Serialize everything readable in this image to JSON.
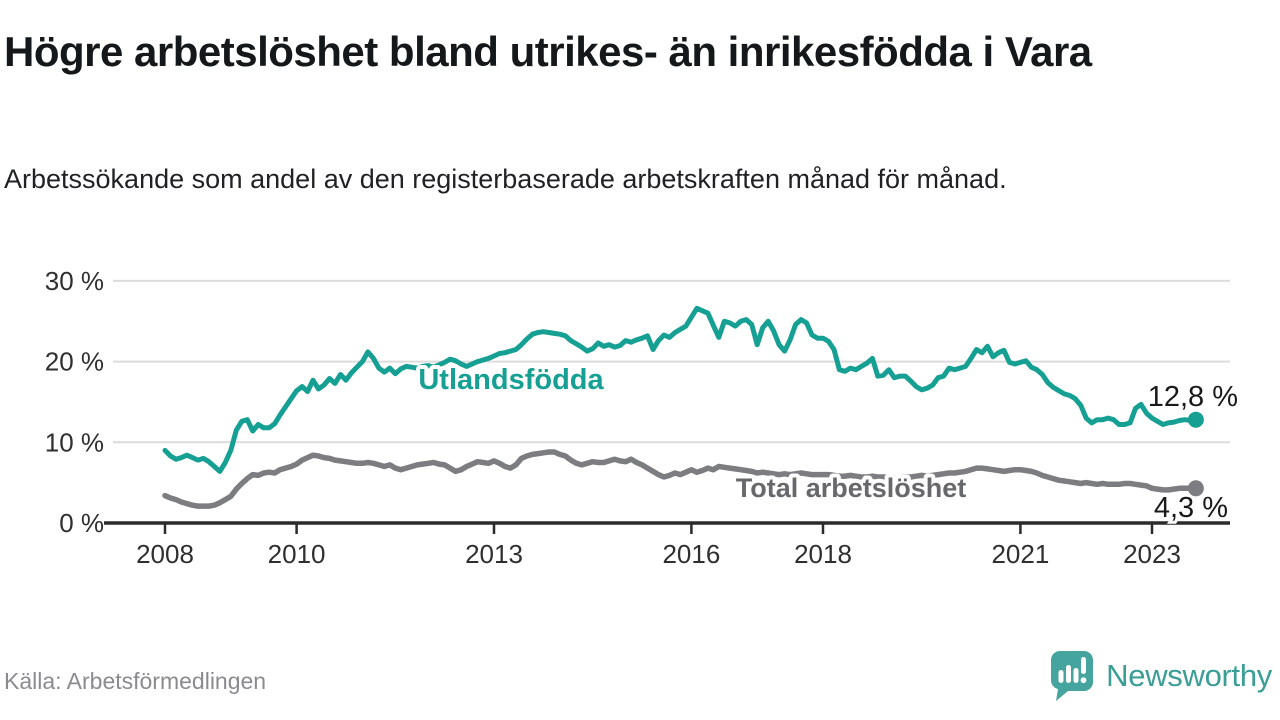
{
  "header": {
    "title": "Högre arbetslöshet bland utrikes- än inrikesfödda i Vara",
    "subtitle": "Arbetssökande som andel av den registerbaserade arbetskraften månad för månad."
  },
  "footer": {
    "source": "Källa: Arbetsförmedlingen",
    "brand_name": "Newsworthy",
    "brand_icon": "newsworthy-speech-bubble-bar-chart-icon"
  },
  "colors": {
    "series_foreign_born": "#16a093",
    "series_total": "#7b7d81",
    "series_total_label": "#66686c",
    "gridline": "#dcdcdc",
    "axis": "#2b2b2b",
    "tick_label": "#2f2f2f",
    "value_label": "#1a1a1a",
    "brand_teal": "#45a49d"
  },
  "chart_data": {
    "type": "line",
    "title": "Högre arbetslöshet bland utrikes- än inrikesfödda i Vara",
    "subtitle": "Arbetssökande som andel av den registerbaserade arbetskraften månad för månad.",
    "x_unit": "month",
    "x_start_year": 2008,
    "x_end": "2023-09",
    "x_ticks": [
      2008,
      2010,
      2013,
      2016,
      2018,
      2021,
      2023
    ],
    "y_ticks": [
      "0 %",
      "10 %",
      "20 %",
      "30 %"
    ],
    "y_tick_values": [
      0,
      10,
      20,
      30
    ],
    "ylim": [
      0,
      30
    ],
    "grid": "horizontal-only",
    "legend": "inline-labels",
    "series": [
      {
        "name": "Utlandsfödda",
        "end_label": "12,8 %",
        "end_value": 12.8,
        "values": [
          9.0,
          8.3,
          7.9,
          8.1,
          8.4,
          8.1,
          7.8,
          8.0,
          7.6,
          7.0,
          6.4,
          7.5,
          9.0,
          11.5,
          12.6,
          12.8,
          11.4,
          12.2,
          11.8,
          11.8,
          12.3,
          13.4,
          14.4,
          15.4,
          16.4,
          16.9,
          16.3,
          17.7,
          16.6,
          17.1,
          17.9,
          17.3,
          18.4,
          17.7,
          18.6,
          19.3,
          20.0,
          21.2,
          20.4,
          19.2,
          18.7,
          19.2,
          18.5,
          19.1,
          19.4,
          19.3,
          19.2,
          19.4,
          19.5,
          19.3,
          19.6,
          19.9,
          20.3,
          20.1,
          19.7,
          19.4,
          19.7,
          20.0,
          20.2,
          20.4,
          20.7,
          21.0,
          21.1,
          21.3,
          21.5,
          22.1,
          22.8,
          23.4,
          23.6,
          23.7,
          23.6,
          23.5,
          23.4,
          23.2,
          22.6,
          22.2,
          21.8,
          21.3,
          21.6,
          22.3,
          21.9,
          22.1,
          21.8,
          22.0,
          22.6,
          22.4,
          22.7,
          22.9,
          23.2,
          21.5,
          22.6,
          23.3,
          23.0,
          23.6,
          24.0,
          24.4,
          25.5,
          26.6,
          26.3,
          26.0,
          24.5,
          23.0,
          25.0,
          24.8,
          24.4,
          25.0,
          25.2,
          24.6,
          22.1,
          24.2,
          25.0,
          23.8,
          22.1,
          21.3,
          22.7,
          24.6,
          25.2,
          24.8,
          23.3,
          22.9,
          22.9,
          22.5,
          21.5,
          19.0,
          18.8,
          19.2,
          19.0,
          19.4,
          19.8,
          20.4,
          18.2,
          18.3,
          19.0,
          18.0,
          18.2,
          18.2,
          17.6,
          16.9,
          16.5,
          16.7,
          17.1,
          18.0,
          18.2,
          19.2,
          19.0,
          19.2,
          19.4,
          20.4,
          21.5,
          21.1,
          21.9,
          20.6,
          21.1,
          21.4,
          19.9,
          19.7,
          19.9,
          20.1,
          19.3,
          19.0,
          18.4,
          17.4,
          16.8,
          16.4,
          16.0,
          15.8,
          15.4,
          14.6,
          13.0,
          12.4,
          12.8,
          12.8,
          13.0,
          12.8,
          12.2,
          12.2,
          12.4,
          14.2,
          14.7,
          13.6,
          13.0,
          12.6,
          12.2,
          12.4,
          12.5,
          12.7,
          12.8,
          12.7,
          12.8
        ]
      },
      {
        "name": "Total arbetslöshet",
        "end_label": "4,3 %",
        "end_value": 4.3,
        "values": [
          3.4,
          3.1,
          2.9,
          2.6,
          2.4,
          2.2,
          2.1,
          2.1,
          2.1,
          2.2,
          2.5,
          2.9,
          3.3,
          4.2,
          4.9,
          5.5,
          6.0,
          5.9,
          6.2,
          6.3,
          6.2,
          6.6,
          6.8,
          7.0,
          7.3,
          7.8,
          8.1,
          8.4,
          8.3,
          8.1,
          8.0,
          7.8,
          7.7,
          7.6,
          7.5,
          7.4,
          7.4,
          7.5,
          7.4,
          7.2,
          7.0,
          7.2,
          6.8,
          6.6,
          6.8,
          7.0,
          7.2,
          7.3,
          7.4,
          7.5,
          7.3,
          7.2,
          6.8,
          6.4,
          6.6,
          7.0,
          7.3,
          7.6,
          7.5,
          7.4,
          7.7,
          7.4,
          7.0,
          6.8,
          7.2,
          8.0,
          8.3,
          8.5,
          8.6,
          8.7,
          8.8,
          8.8,
          8.5,
          8.3,
          7.8,
          7.4,
          7.2,
          7.4,
          7.6,
          7.5,
          7.5,
          7.7,
          7.9,
          7.7,
          7.6,
          7.9,
          7.5,
          7.2,
          6.8,
          6.4,
          6.0,
          5.7,
          5.9,
          6.2,
          6.0,
          6.3,
          6.6,
          6.3,
          6.5,
          6.8,
          6.6,
          7.0,
          6.9,
          6.8,
          6.7,
          6.6,
          6.5,
          6.4,
          6.2,
          6.3,
          6.2,
          6.1,
          6.0,
          6.1,
          6.0,
          6.1,
          6.2,
          6.1,
          6.0,
          6.0,
          6.0,
          6.0,
          5.9,
          5.8,
          5.8,
          5.9,
          5.8,
          5.7,
          5.7,
          5.8,
          5.7,
          5.7,
          5.7,
          5.6,
          5.6,
          5.7,
          5.7,
          5.8,
          5.9,
          5.8,
          5.9,
          6.0,
          6.1,
          6.2,
          6.2,
          6.3,
          6.4,
          6.6,
          6.8,
          6.8,
          6.7,
          6.6,
          6.5,
          6.4,
          6.5,
          6.6,
          6.6,
          6.5,
          6.4,
          6.2,
          5.9,
          5.7,
          5.5,
          5.3,
          5.2,
          5.1,
          5.0,
          4.9,
          5.0,
          4.9,
          4.8,
          4.9,
          4.8,
          4.8,
          4.8,
          4.9,
          4.9,
          4.8,
          4.7,
          4.6,
          4.3,
          4.2,
          4.1,
          4.1,
          4.2,
          4.3,
          4.3,
          4.3,
          4.3
        ]
      }
    ]
  }
}
